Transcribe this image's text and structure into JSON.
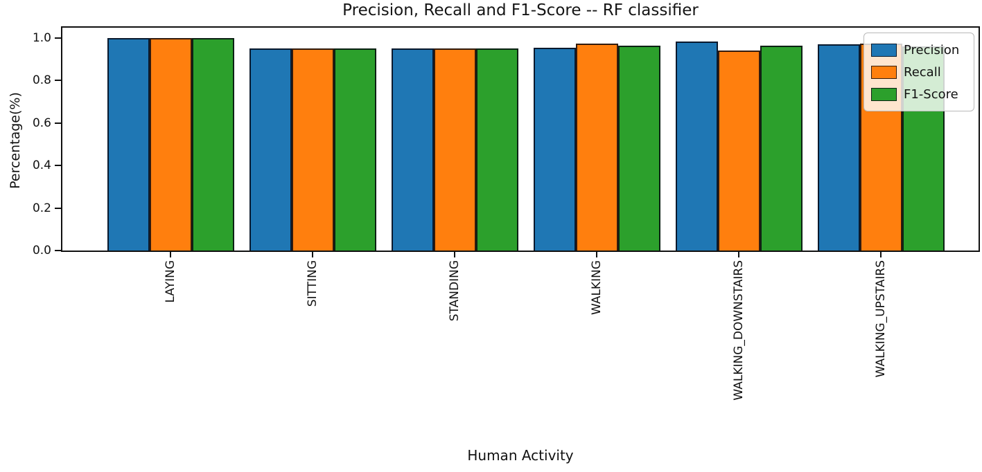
{
  "chart_data": {
    "type": "bar",
    "title": "Precision, Recall and F1-Score -- RF classifier",
    "xlabel": "Human Activity",
    "ylabel": "Percentage(%)",
    "categories": [
      "LAYING",
      "SITTING",
      "STANDING",
      "WALKING",
      "WALKING_DOWNSTAIRS",
      "WALKING_UPSTAIRS"
    ],
    "series": [
      {
        "name": "Precision",
        "color": "#1f77b4",
        "values": [
          1.0,
          0.95,
          0.95,
          0.955,
          0.985,
          0.97
        ]
      },
      {
        "name": "Recall",
        "color": "#ff7f0e",
        "values": [
          1.0,
          0.95,
          0.95,
          0.975,
          0.94,
          0.975
        ]
      },
      {
        "name": "F1-Score",
        "color": "#2ca02c",
        "values": [
          1.0,
          0.95,
          0.95,
          0.965,
          0.965,
          0.96
        ]
      }
    ],
    "ylim": [
      0,
      1.055
    ],
    "yticks": [
      "0.0",
      "0.2",
      "0.4",
      "0.6",
      "0.8",
      "1.0"
    ],
    "x_tick_rotation": 90,
    "grid": false,
    "legend_position": "upper right",
    "bar_edge_color": "#000000",
    "background": "#ffffff"
  }
}
